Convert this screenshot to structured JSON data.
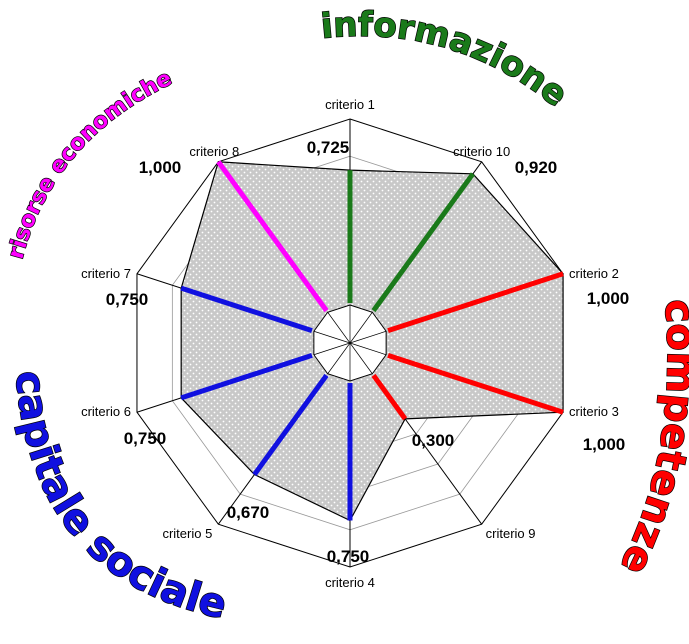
{
  "chart_data": {
    "type": "radar",
    "axes": [
      "criterio 1",
      "criterio 10",
      "criterio 2",
      "criterio 3",
      "criterio 9",
      "criterio 4",
      "criterio 5",
      "criterio 6",
      "criterio 7",
      "criterio 8"
    ],
    "values": [
      0.725,
      0.92,
      1.0,
      1.0,
      0.3,
      0.75,
      0.67,
      0.75,
      0.75,
      1.0
    ],
    "value_labels": [
      "0,725",
      "0,920",
      "1,000",
      "1,000",
      "0,300",
      "0,750",
      "0,670",
      "0,750",
      "0,750",
      "1,000"
    ],
    "rlim": [
      0,
      1
    ],
    "grid_rings": 5,
    "fill": "dotted-gray",
    "groups": [
      {
        "name": "informazione",
        "color": "#1a7a1a",
        "axes": [
          "criterio 1",
          "criterio 10"
        ]
      },
      {
        "name": "competenze",
        "color": "#ff0000",
        "axes": [
          "criterio 2",
          "criterio 3",
          "criterio 9"
        ]
      },
      {
        "name": "capitale sociale",
        "color": "#1010e0",
        "axes": [
          "criterio 4",
          "criterio 5",
          "criterio 6",
          "criterio 7"
        ]
      },
      {
        "name": "risorse economiche",
        "color": "#ff00ff",
        "axes": [
          "criterio 8"
        ]
      }
    ],
    "axis_colors": [
      "#1a7a1a",
      "#1a7a1a",
      "#ff0000",
      "#ff0000",
      "#ff0000",
      "#1010e0",
      "#1010e0",
      "#1010e0",
      "#1010e0",
      "#ff00ff"
    ]
  }
}
